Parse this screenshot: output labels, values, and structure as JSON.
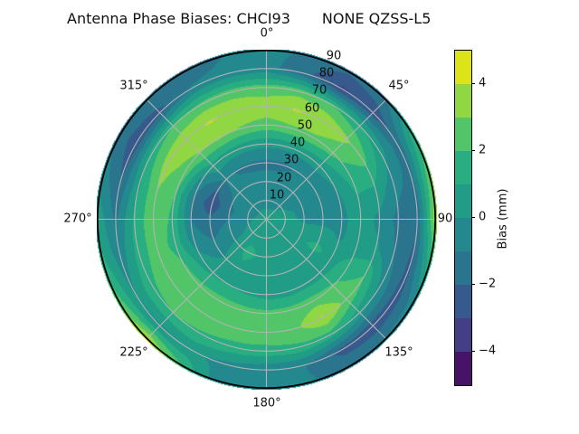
{
  "title": {
    "left": "Antenna Phase Biases: CHCI93",
    "right": "NONE QZSS-L5"
  },
  "chart_data": {
    "type": "heatmap",
    "projection": "polar",
    "title": "Antenna Phase Biases: CHCI93        NONE QZSS-L5",
    "theta_labels": [
      "0°",
      "45°",
      "90",
      "135°",
      "180°",
      "225°",
      "270°",
      "315°"
    ],
    "r_labels": [
      "10",
      "20",
      "30",
      "40",
      "50",
      "60",
      "70",
      "80",
      "90"
    ],
    "azimuth_deg": [
      0,
      15,
      30,
      45,
      60,
      75,
      90,
      105,
      120,
      135,
      150,
      165,
      180,
      195,
      210,
      225,
      240,
      255,
      270,
      285,
      300,
      315,
      330,
      345
    ],
    "zenith_deg": [
      0,
      10,
      20,
      30,
      40,
      50,
      60,
      70,
      80,
      90
    ],
    "values": [
      [
        0.4,
        -0.3,
        -0.7,
        -1.2,
        0.3,
        2.6,
        3.6,
        2.4,
        -0.6,
        -0.6
      ],
      [
        0.4,
        -0.3,
        -0.7,
        -1.2,
        0.3,
        2.8,
        4.1,
        2.6,
        -1.8,
        -1.2
      ],
      [
        0.4,
        -0.3,
        -0.6,
        -1.0,
        0.4,
        2.8,
        3.9,
        2.0,
        -3.2,
        -1.8
      ],
      [
        0.4,
        -0.2,
        -0.5,
        -0.6,
        0.3,
        2.4,
        3.2,
        1.2,
        -2.6,
        -1.2
      ],
      [
        0.4,
        0.0,
        -0.4,
        -0.6,
        0.1,
        1.6,
        2.2,
        0.4,
        -1.6,
        1.6
      ],
      [
        0.4,
        0.2,
        -0.2,
        -0.5,
        -0.2,
        1.0,
        0.8,
        -0.6,
        -1.4,
        3.0
      ],
      [
        0.4,
        0.3,
        -0.2,
        -0.5,
        -0.3,
        0.6,
        -0.3,
        -1.3,
        -1.8,
        3.8
      ],
      [
        0.4,
        0.5,
        0.3,
        0.6,
        -0.1,
        0.4,
        0.2,
        -1.0,
        -2.2,
        1.8
      ],
      [
        0.4,
        0.6,
        0.8,
        1.3,
        0.6,
        1.4,
        2.0,
        -0.3,
        -2.4,
        -0.4
      ],
      [
        0.4,
        0.7,
        0.5,
        0.3,
        0.5,
        2.2,
        2.7,
        0.5,
        -2.7,
        -0.8
      ],
      [
        0.4,
        0.8,
        0.6,
        0.2,
        0.6,
        2.5,
        4.1,
        1.6,
        -2.4,
        -1.2
      ],
      [
        0.4,
        0.8,
        0.6,
        0.1,
        0.5,
        2.4,
        2.8,
        1.8,
        -1.0,
        -0.9
      ],
      [
        0.4,
        0.8,
        0.7,
        0.2,
        0.6,
        2.3,
        2.8,
        1.6,
        -0.8,
        -0.6
      ],
      [
        0.4,
        0.7,
        1.0,
        0.6,
        0.8,
        2.4,
        2.7,
        1.7,
        -0.4,
        -1.0
      ],
      [
        0.4,
        0.6,
        1.3,
        0.7,
        1.0,
        2.4,
        2.6,
        1.9,
        0.2,
        2.0
      ],
      [
        0.4,
        0.4,
        0.7,
        0.2,
        0.8,
        2.3,
        2.8,
        2.0,
        -0.2,
        4.3
      ],
      [
        0.4,
        0.2,
        -0.3,
        -0.8,
        0.3,
        2.2,
        2.7,
        1.8,
        0.0,
        2.6
      ],
      [
        0.4,
        0.0,
        -0.6,
        -1.2,
        -0.6,
        1.6,
        2.6,
        1.4,
        -0.6,
        1.4
      ],
      [
        0.4,
        -0.2,
        -1.0,
        -1.8,
        -1.0,
        1.8,
        2.8,
        1.2,
        -1.2,
        0.8
      ],
      [
        0.4,
        -0.3,
        -1.2,
        -2.7,
        -1.2,
        2.0,
        3.0,
        0.8,
        -2.0,
        -0.4
      ],
      [
        0.4,
        -0.4,
        -0.9,
        -2.1,
        -0.5,
        2.6,
        3.5,
        1.4,
        -2.7,
        -1.2
      ],
      [
        0.4,
        -0.3,
        -0.7,
        -0.8,
        0.7,
        3.0,
        3.8,
        2.0,
        -2.4,
        -0.8
      ],
      [
        0.4,
        -0.3,
        -0.7,
        -1.1,
        0.5,
        3.2,
        4.1,
        2.3,
        -0.9,
        -1.7
      ],
      [
        0.4,
        -0.3,
        -0.7,
        -1.2,
        0.4,
        2.9,
        3.8,
        2.5,
        -0.7,
        -1.0
      ]
    ],
    "value_bins": {
      "min": -5,
      "max": 5,
      "step": 1
    },
    "palette": [
      "#461369",
      "#433e85",
      "#375a8c",
      "#2b748e",
      "#23898e",
      "#219c86",
      "#28ae80",
      "#52c569",
      "#90d743",
      "#dde319"
    ],
    "grid_color": "#b3b3b3",
    "rlim": [
      0,
      90
    ],
    "legend_position": "right-colorbar"
  },
  "colorbar": {
    "label": "Bias (mm)",
    "ticks": [
      "4",
      "2",
      "0",
      "−2",
      "−4"
    ],
    "tick_values": [
      4,
      2,
      0,
      -2,
      -4
    ],
    "range": [
      -5,
      5
    ],
    "segments": 10
  }
}
